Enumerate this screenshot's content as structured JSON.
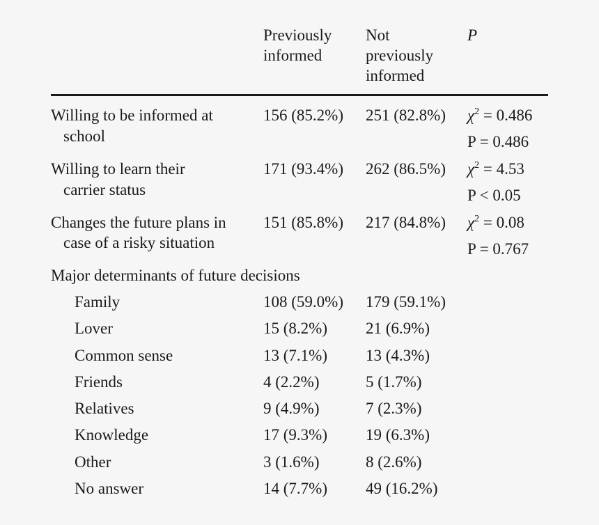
{
  "header": {
    "col1": [
      "Previously",
      "informed"
    ],
    "col2": [
      "Not",
      "previously",
      "informed"
    ],
    "col3": "P"
  },
  "rows": [
    {
      "label": [
        "Willing to be informed at",
        "school"
      ],
      "prev": "156 (85.2%)",
      "notprev": "251 (82.8%)",
      "stat": {
        "chi_symbol": "χ",
        "chi_exp": "2",
        "chi_rest": " = 0.486",
        "p": "P = 0.486"
      }
    },
    {
      "label": [
        "Willing to learn their",
        "carrier status"
      ],
      "prev": "171 (93.4%)",
      "notprev": "262 (86.5%)",
      "stat": {
        "chi_symbol": "χ",
        "chi_exp": "2",
        "chi_rest": " = 4.53",
        "p": "P < 0.05"
      }
    },
    {
      "label": [
        "Changes the future plans in",
        "case of a risky situation"
      ],
      "prev": "151 (85.8%)",
      "notprev": "217 (84.8%)",
      "stat": {
        "chi_symbol": "χ",
        "chi_exp": "2",
        "chi_rest": " = 0.08",
        "p": "P = 0.767"
      }
    }
  ],
  "section": "Major determinants of future decisions",
  "determinants": [
    {
      "label": "Family",
      "prev": "108 (59.0%)",
      "notprev": "179 (59.1%)"
    },
    {
      "label": "Lover",
      "prev": "15 (8.2%)",
      "notprev": "21 (6.9%)"
    },
    {
      "label": "Common sense",
      "prev": "13 (7.1%)",
      "notprev": "13 (4.3%)"
    },
    {
      "label": "Friends",
      "prev": "4 (2.2%)",
      "notprev": "5 (1.7%)"
    },
    {
      "label": "Relatives",
      "prev": "9 (4.9%)",
      "notprev": "7 (2.3%)"
    },
    {
      "label": "Knowledge",
      "prev": "17 (9.3%)",
      "notprev": "19 (6.3%)"
    },
    {
      "label": "Other",
      "prev": "3 (1.6%)",
      "notprev": "8 (2.6%)"
    },
    {
      "label": "No answer",
      "prev": "14 (7.7%)",
      "notprev": "49 (16.2%)"
    }
  ]
}
